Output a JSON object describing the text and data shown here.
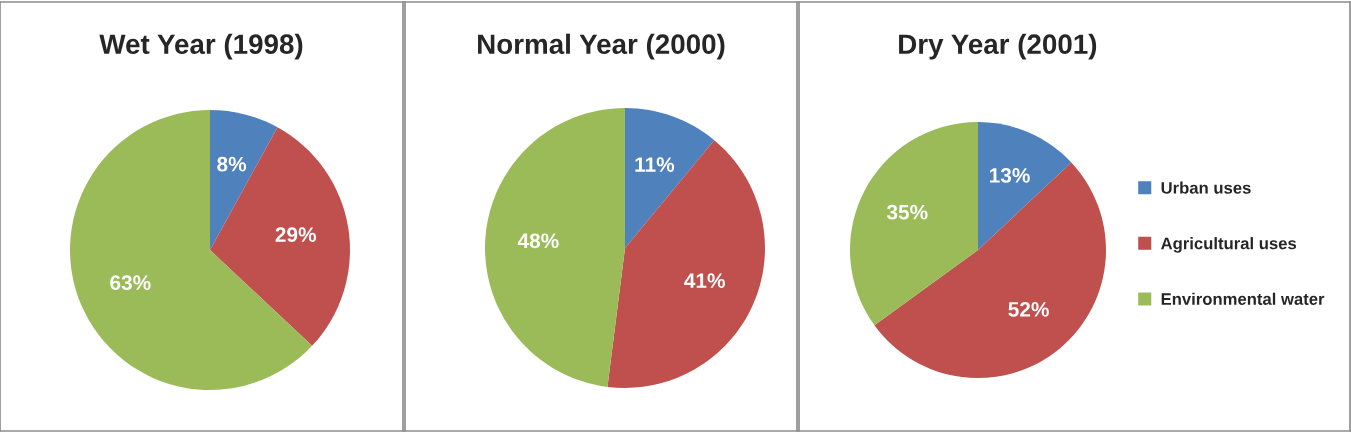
{
  "chart_data": [
    {
      "type": "pie",
      "title": "Wet Year (1998)",
      "categories": [
        null,
        null,
        null
      ],
      "values": [
        8,
        29,
        63
      ],
      "value_labels": [
        "8%",
        "29%",
        "63%"
      ],
      "colors": [
        "#4f81bd",
        "#c0504d",
        "#9bbb59"
      ]
    },
    {
      "type": "pie",
      "title": "Normal Year (2000)",
      "categories": [
        null,
        null,
        null
      ],
      "values": [
        11,
        41,
        48
      ],
      "value_labels": [
        "11%",
        "41%",
        "48%"
      ],
      "colors": [
        "#4f81bd",
        "#c0504d",
        "#9bbb59"
      ]
    },
    {
      "type": "pie",
      "title": "Dry Year (2001)",
      "categories": [
        "Urban uses",
        "Agricultural uses",
        "Environmental water"
      ],
      "values": [
        13,
        52,
        35
      ],
      "value_labels": [
        "13%",
        "52%",
        "35%"
      ],
      "colors": [
        "#4f81bd",
        "#c0504d",
        "#9bbb59"
      ],
      "legend": "right"
    }
  ]
}
